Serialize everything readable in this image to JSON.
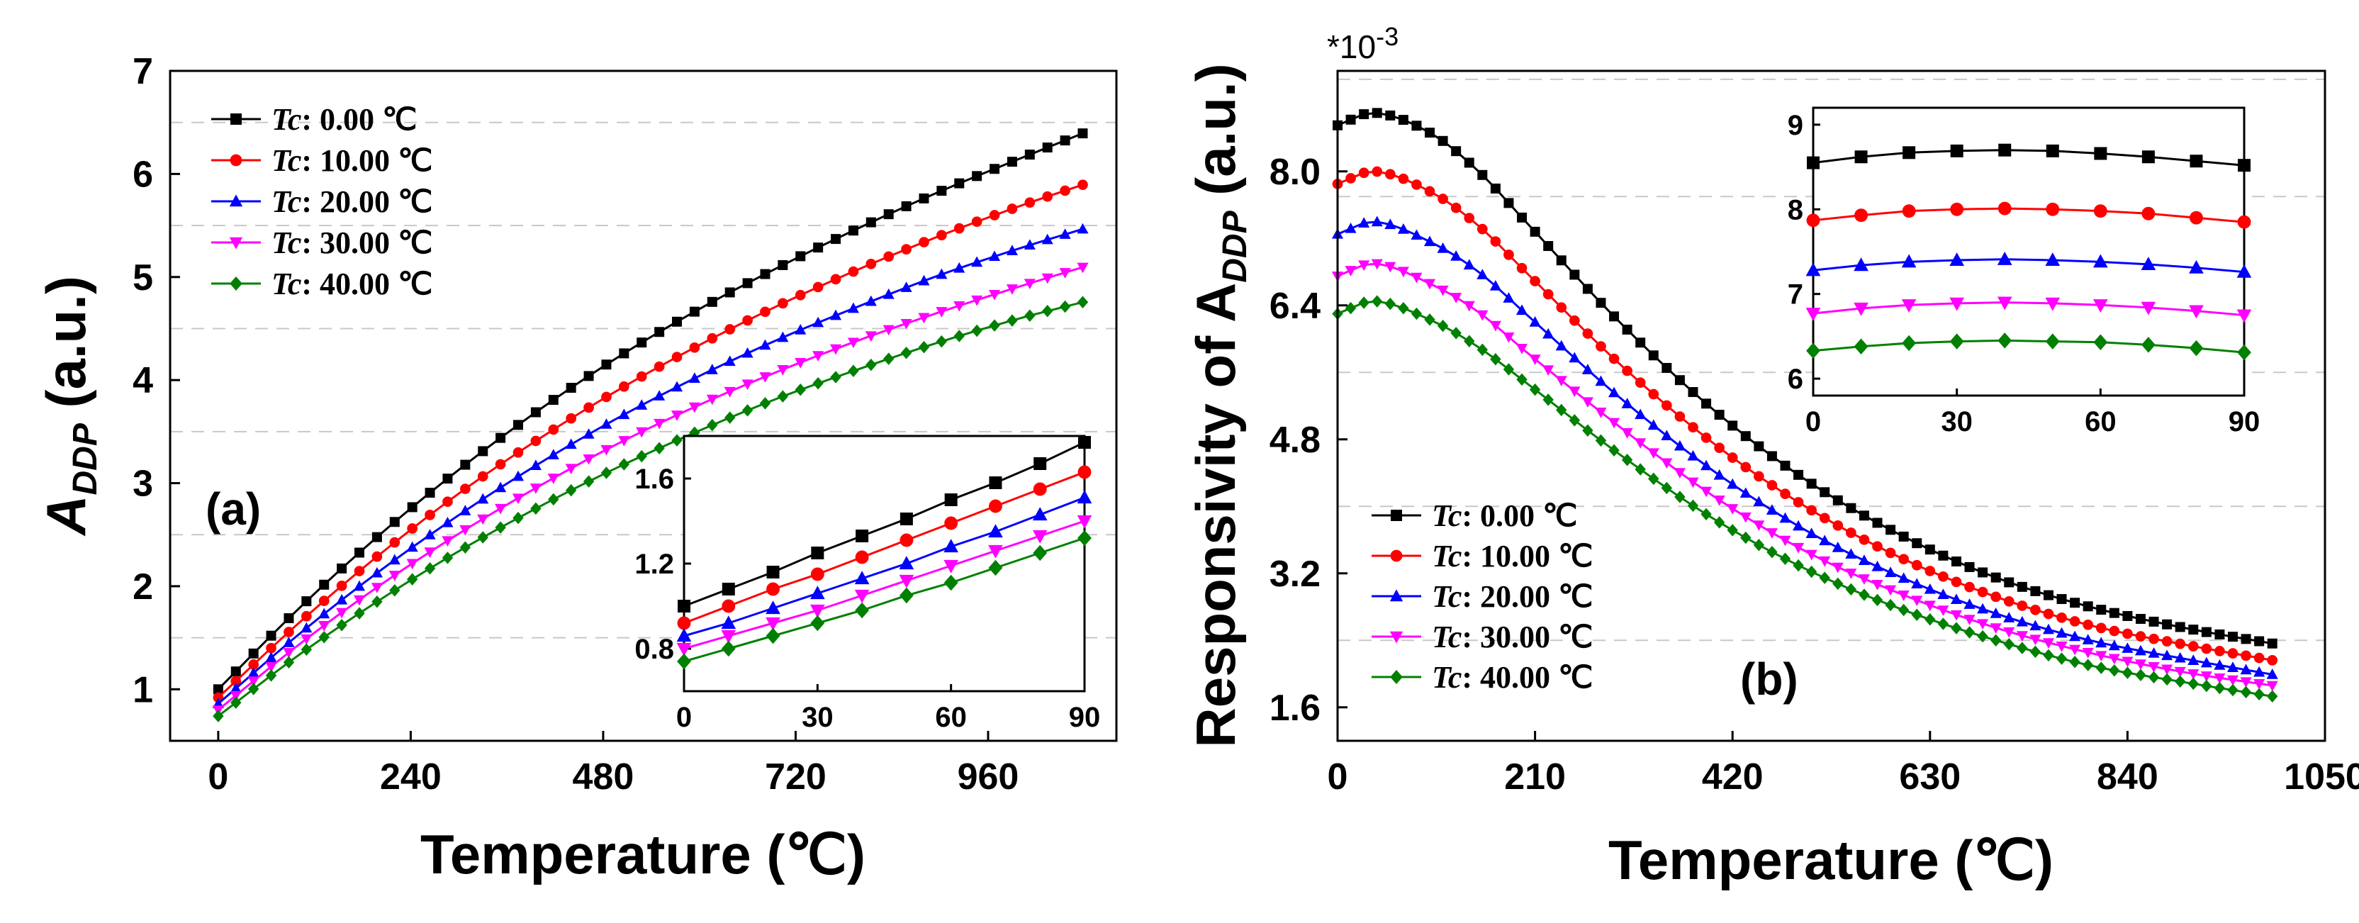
{
  "chart_data": [
    {
      "id": "a",
      "type": "line",
      "panel_label": "(a)",
      "xlabel": "Temperature (℃)",
      "ylabel_main": "A",
      "ylabel_sub": "DDP",
      "ylabel_rest": " (a.u.)",
      "xlim": [
        -60,
        1120
      ],
      "ylim": [
        0.5,
        7
      ],
      "xticks": [
        0,
        240,
        480,
        720,
        960
      ],
      "yticks": [
        1,
        2,
        3,
        4,
        5,
        6,
        7
      ],
      "grid_y": [
        1.5,
        2.5,
        3.5,
        4.5,
        5.5,
        6.5
      ],
      "legend_loc": "top-left",
      "series": [
        {
          "name_italic": "Tc",
          "name_rest": ": 0.00 ℃",
          "color": "#000000",
          "marker": "square",
          "x": [
            0,
            100,
            200,
            300,
            400,
            500,
            600,
            700,
            800,
            900,
            1000,
            1080
          ],
          "y": [
            1.0,
            1.78,
            2.49,
            3.13,
            3.71,
            4.23,
            4.69,
            5.1,
            5.48,
            5.83,
            6.15,
            6.4
          ]
        },
        {
          "name_italic": "Tc",
          "name_rest": ": 10.00 ℃",
          "color": "#ff0000",
          "marker": "circle",
          "x": [
            0,
            100,
            200,
            300,
            400,
            500,
            600,
            700,
            800,
            900,
            1000,
            1080
          ],
          "y": [
            0.92,
            1.64,
            2.3,
            2.9,
            3.43,
            3.91,
            4.34,
            4.73,
            5.08,
            5.4,
            5.69,
            5.9
          ]
        },
        {
          "name_italic": "Tc",
          "name_rest": ": 20.00 ℃",
          "color": "#0000ff",
          "marker": "triangle-up",
          "x": [
            0,
            100,
            200,
            300,
            400,
            500,
            600,
            700,
            800,
            900,
            1000,
            1080
          ],
          "y": [
            0.86,
            1.53,
            2.14,
            2.69,
            3.19,
            3.64,
            4.04,
            4.4,
            4.72,
            5.02,
            5.28,
            5.47
          ]
        },
        {
          "name_italic": "Tc",
          "name_rest": ": 30.00 ℃",
          "color": "#ff00ff",
          "marker": "triangle-down",
          "x": [
            0,
            100,
            200,
            300,
            400,
            500,
            600,
            700,
            800,
            900,
            1000,
            1080
          ],
          "y": [
            0.8,
            1.43,
            2.0,
            2.51,
            2.97,
            3.39,
            3.76,
            4.09,
            4.39,
            4.66,
            4.91,
            5.1
          ]
        },
        {
          "name_italic": "Tc",
          "name_rest": ": 40.00 ℃",
          "color": "#008000",
          "marker": "diamond",
          "x": [
            0,
            100,
            200,
            300,
            400,
            500,
            600,
            700,
            800,
            900,
            1000,
            1080
          ],
          "y": [
            0.74,
            1.33,
            1.86,
            2.34,
            2.77,
            3.16,
            3.51,
            3.83,
            4.11,
            4.37,
            4.6,
            4.76
          ]
        }
      ],
      "inset": {
        "xlim": [
          0,
          90
        ],
        "ylim": [
          0.6,
          1.8
        ],
        "xticks": [
          0,
          30,
          60,
          90
        ],
        "yticks": [
          0.8,
          1.2,
          1.6
        ],
        "series": [
          {
            "color": "#000000",
            "marker": "square",
            "x": [
              0,
              10,
              20,
              30,
              40,
              50,
              60,
              70,
              80,
              90
            ],
            "y": [
              1.0,
              1.08,
              1.16,
              1.25,
              1.33,
              1.41,
              1.5,
              1.58,
              1.67,
              1.77
            ]
          },
          {
            "color": "#ff0000",
            "marker": "circle",
            "x": [
              0,
              10,
              20,
              30,
              40,
              50,
              60,
              70,
              80,
              90
            ],
            "y": [
              0.92,
              1.0,
              1.08,
              1.15,
              1.23,
              1.31,
              1.39,
              1.47,
              1.55,
              1.63
            ]
          },
          {
            "color": "#0000ff",
            "marker": "triangle-up",
            "x": [
              0,
              10,
              20,
              30,
              40,
              50,
              60,
              70,
              80,
              90
            ],
            "y": [
              0.86,
              0.92,
              0.99,
              1.06,
              1.13,
              1.2,
              1.28,
              1.35,
              1.43,
              1.51
            ]
          },
          {
            "color": "#ff00ff",
            "marker": "triangle-down",
            "x": [
              0,
              10,
              20,
              30,
              40,
              50,
              60,
              70,
              80,
              90
            ],
            "y": [
              0.8,
              0.86,
              0.92,
              0.98,
              1.05,
              1.12,
              1.19,
              1.26,
              1.33,
              1.4
            ]
          },
          {
            "color": "#008000",
            "marker": "diamond",
            "x": [
              0,
              10,
              20,
              30,
              40,
              50,
              60,
              70,
              80,
              90
            ],
            "y": [
              0.74,
              0.8,
              0.86,
              0.92,
              0.98,
              1.05,
              1.11,
              1.18,
              1.25,
              1.32
            ]
          }
        ]
      }
    },
    {
      "id": "b",
      "type": "line",
      "panel_label": "(b)",
      "multiplier": "*10",
      "multiplier_exp": "-3",
      "xlabel": "Temperature (℃)",
      "ylabel_main": "Responsivity of A",
      "ylabel_sub": "DDP",
      "ylabel_rest": " (a.u.)",
      "xlim": [
        0,
        1050
      ],
      "ylim": [
        1.2,
        9.2
      ],
      "xticks": [
        0,
        210,
        420,
        630,
        840,
        1050
      ],
      "yticks": [
        1.6,
        3.2,
        4.8,
        6.4,
        8.0
      ],
      "ytick_labels": [
        "1.6",
        "3.2",
        "4.8",
        "6.4",
        "8.0"
      ],
      "grid_y": [
        2.4,
        4.0,
        5.6,
        7.7,
        9.1
      ],
      "legend_loc": "bottom-left",
      "series": [
        {
          "name_italic": "Tc",
          "name_rest": ": 0.00 ℃",
          "color": "#000000",
          "marker": "square",
          "x": [
            0,
            40,
            100,
            150,
            200,
            300,
            400,
            500,
            600,
            700,
            800,
            900,
            1000
          ],
          "y": [
            8.55,
            8.7,
            8.45,
            8.0,
            7.4,
            6.2,
            5.15,
            4.3,
            3.65,
            3.15,
            2.8,
            2.55,
            2.35
          ]
        },
        {
          "name_italic": "Tc",
          "name_rest": ": 10.00 ℃",
          "color": "#ff0000",
          "marker": "circle",
          "x": [
            0,
            40,
            100,
            150,
            200,
            300,
            400,
            500,
            600,
            700,
            800,
            900,
            1000
          ],
          "y": [
            7.85,
            8.0,
            7.75,
            7.35,
            6.8,
            5.7,
            4.75,
            3.98,
            3.38,
            2.92,
            2.58,
            2.35,
            2.15
          ]
        },
        {
          "name_italic": "Tc",
          "name_rest": ": 20.00 ℃",
          "color": "#0000ff",
          "marker": "triangle-up",
          "x": [
            0,
            40,
            100,
            150,
            200,
            300,
            400,
            500,
            600,
            700,
            800,
            900,
            1000
          ],
          "y": [
            7.25,
            7.4,
            7.15,
            6.8,
            6.3,
            5.3,
            4.42,
            3.7,
            3.15,
            2.72,
            2.4,
            2.18,
            1.98
          ]
        },
        {
          "name_italic": "Tc",
          "name_rest": ": 30.00 ℃",
          "color": "#ff00ff",
          "marker": "triangle-down",
          "x": [
            0,
            40,
            100,
            150,
            200,
            300,
            400,
            500,
            600,
            700,
            800,
            900,
            1000
          ],
          "y": [
            6.75,
            6.9,
            6.65,
            6.32,
            5.85,
            4.95,
            4.12,
            3.45,
            2.95,
            2.55,
            2.25,
            2.02,
            1.85
          ]
        },
        {
          "name_italic": "Tc",
          "name_rest": ": 40.00 ℃",
          "color": "#008000",
          "marker": "diamond",
          "x": [
            0,
            40,
            100,
            150,
            200,
            300,
            400,
            500,
            600,
            700,
            800,
            900,
            1000
          ],
          "y": [
            6.3,
            6.45,
            6.22,
            5.9,
            5.48,
            4.62,
            3.85,
            3.24,
            2.77,
            2.4,
            2.1,
            1.9,
            1.72
          ]
        }
      ],
      "inset": {
        "xlim": [
          0,
          90
        ],
        "ylim": [
          5.8,
          9.2
        ],
        "xticks": [
          0,
          30,
          60,
          90
        ],
        "yticks": [
          6,
          7,
          8,
          9
        ],
        "series": [
          {
            "color": "#000000",
            "marker": "square",
            "x": [
              0,
              10,
              20,
              30,
              40,
              50,
              60,
              70,
              80,
              90
            ],
            "y": [
              8.55,
              8.62,
              8.67,
              8.69,
              8.7,
              8.69,
              8.66,
              8.62,
              8.57,
              8.52
            ]
          },
          {
            "color": "#ff0000",
            "marker": "circle",
            "x": [
              0,
              10,
              20,
              30,
              40,
              50,
              60,
              70,
              80,
              90
            ],
            "y": [
              7.87,
              7.93,
              7.98,
              8.0,
              8.01,
              8.0,
              7.98,
              7.95,
              7.9,
              7.85
            ]
          },
          {
            "color": "#0000ff",
            "marker": "triangle-up",
            "x": [
              0,
              10,
              20,
              30,
              40,
              50,
              60,
              70,
              80,
              90
            ],
            "y": [
              7.28,
              7.34,
              7.38,
              7.4,
              7.41,
              7.4,
              7.38,
              7.35,
              7.31,
              7.26
            ]
          },
          {
            "color": "#ff00ff",
            "marker": "triangle-down",
            "x": [
              0,
              10,
              20,
              30,
              40,
              50,
              60,
              70,
              80,
              90
            ],
            "y": [
              6.77,
              6.83,
              6.87,
              6.89,
              6.9,
              6.89,
              6.87,
              6.84,
              6.8,
              6.75
            ]
          },
          {
            "color": "#008000",
            "marker": "diamond",
            "x": [
              0,
              10,
              20,
              30,
              40,
              50,
              60,
              70,
              80,
              90
            ],
            "y": [
              6.33,
              6.38,
              6.42,
              6.44,
              6.45,
              6.44,
              6.43,
              6.4,
              6.36,
              6.31
            ]
          }
        ]
      }
    }
  ]
}
